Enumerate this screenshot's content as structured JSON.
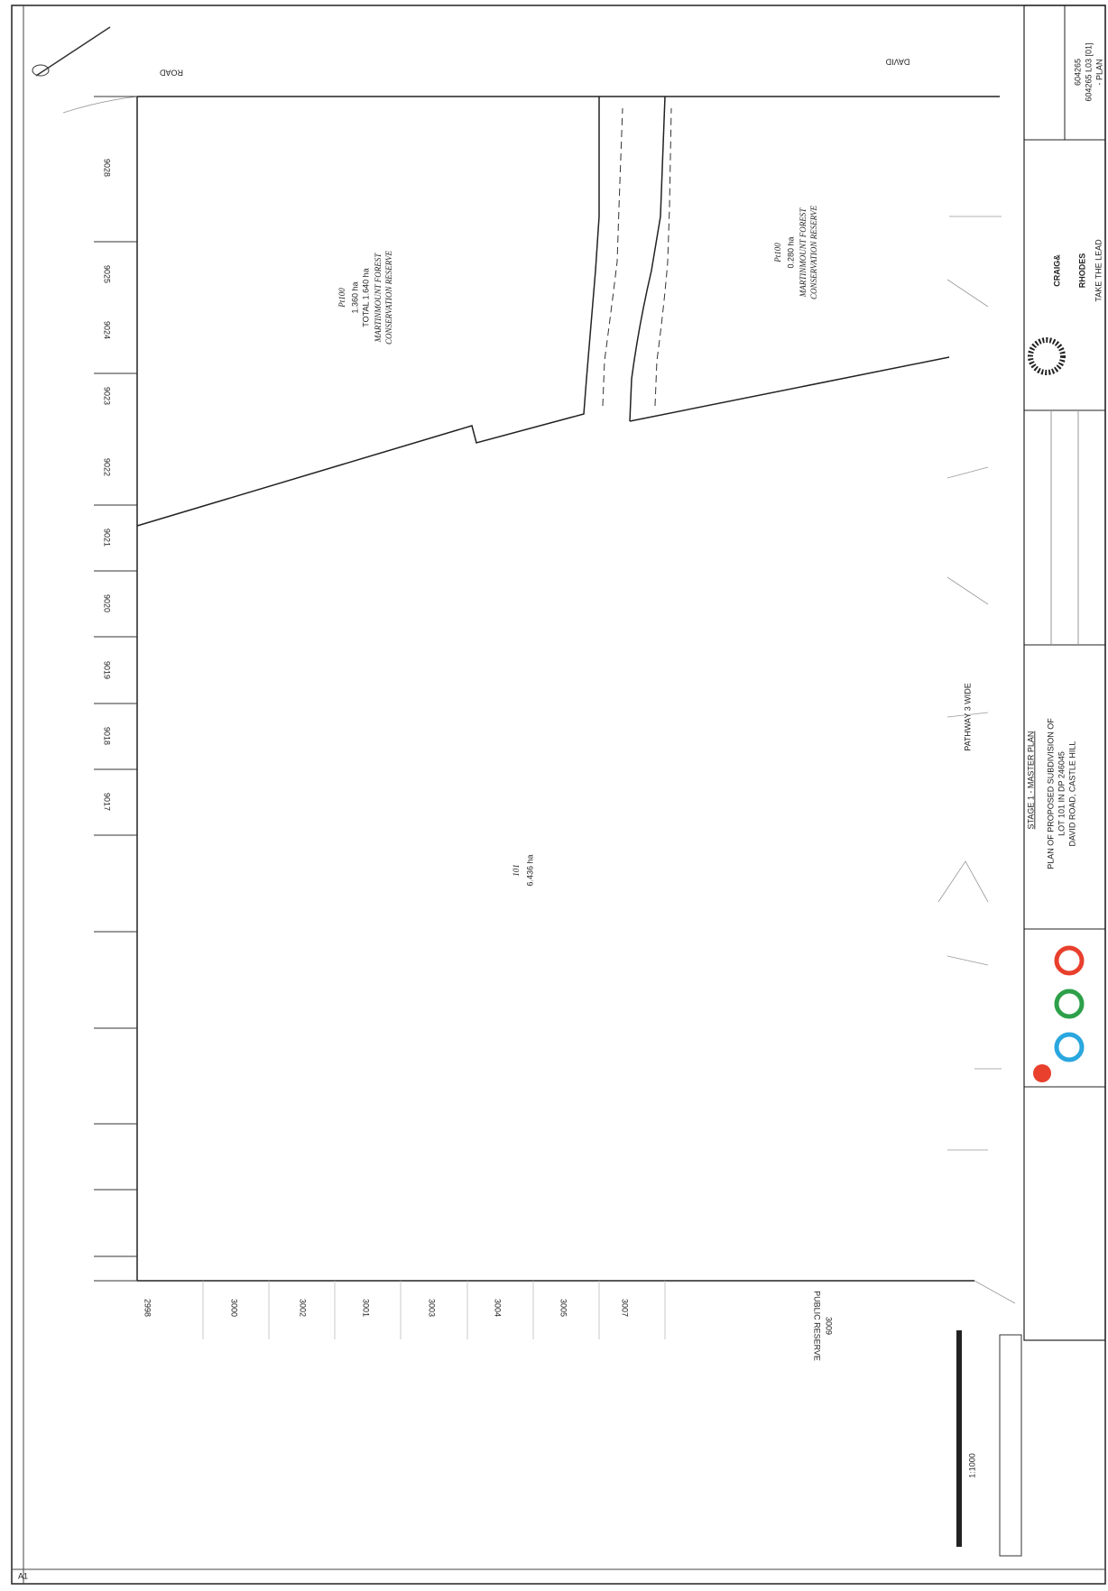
{
  "road": {
    "left": "ROAD",
    "right": "DAVID"
  },
  "reserve_west": {
    "name": "Pt100",
    "area": "1.360 ha",
    "total": "TOTAL 1.640 ha",
    "label": [
      "MARTINMOUNT FOREST",
      "CONSERVATION RESERVE"
    ]
  },
  "reserve_east": {
    "name": "Pt100",
    "area": "0.280 ha",
    "label": [
      "MARTINMOUNT FOREST",
      "CONSERVATION RESERVE"
    ]
  },
  "main_lot": {
    "name": "101",
    "area": "6.436 ha"
  },
  "west_lots": [
    "9028",
    "9025",
    "9024",
    "9023",
    "9022",
    "9021",
    "9020",
    "9019",
    "9018",
    "9017"
  ],
  "south_lots": [
    "2998",
    "3000",
    "3002",
    "3001",
    "3003",
    "3004",
    "3005",
    "3007"
  ],
  "pathway": "PATHWAY 3 WIDE",
  "public_reserve": [
    "PUBLIC RESERVE",
    "3009"
  ],
  "drawing_title": "STAGE 1 - MASTER PLAN",
  "title_block": {
    "project": [
      "PLAN OF PROPOSED SUBDIVISION OF",
      "LOT 101 IN DP 246045",
      "DAVID ROAD, CASTLE HILL"
    ],
    "company": [
      "CRAIG&",
      "RHODES",
      "TAKE THE LEAD"
    ],
    "drawing_no": "604265 L03 [01]",
    "drawing_name": "- PLAN",
    "job": "604265"
  },
  "sheet": "A1",
  "scale": "1:1000"
}
